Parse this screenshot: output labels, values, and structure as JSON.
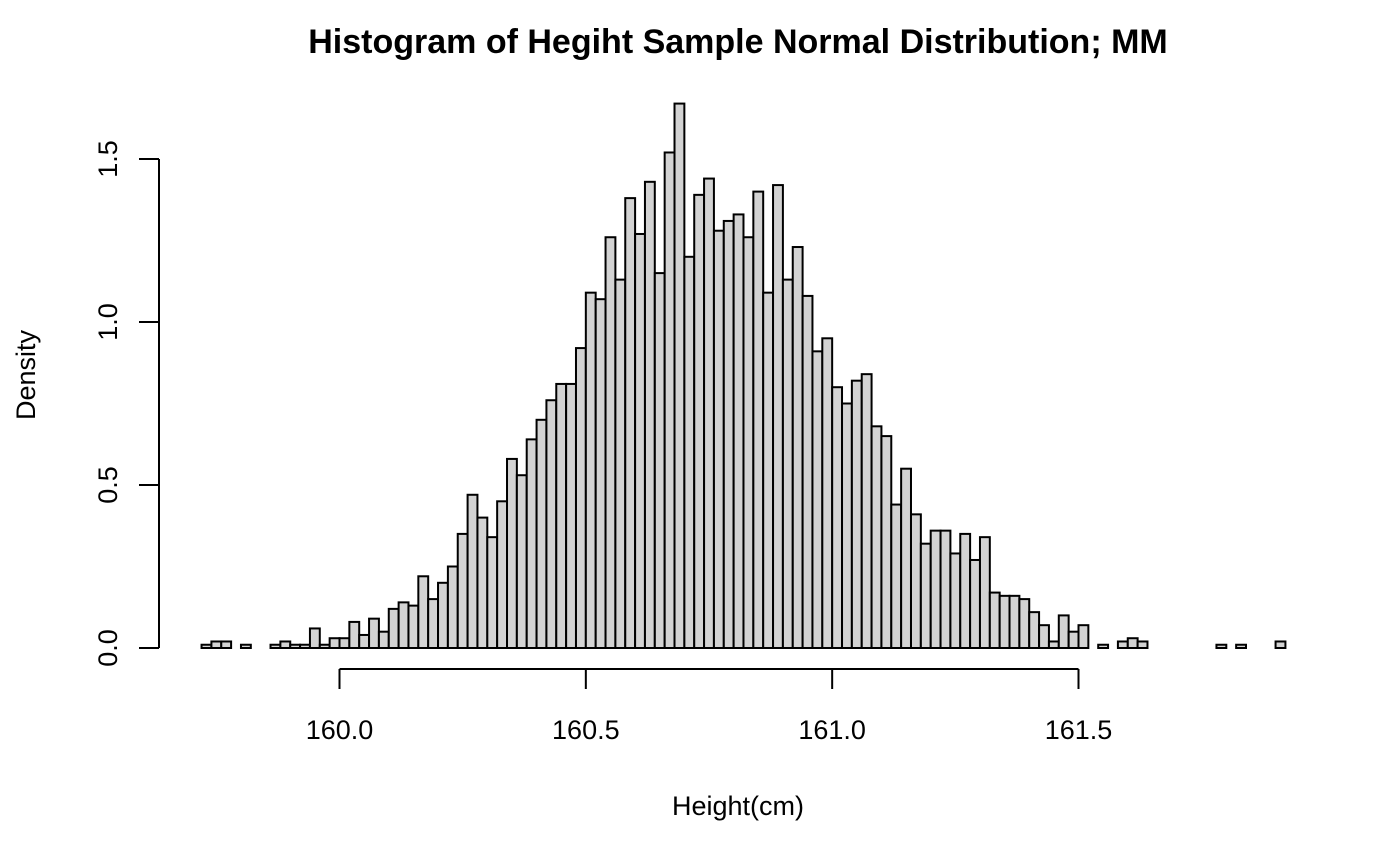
{
  "chart_data": {
    "type": "bar",
    "title": "Histogram of Hegiht Sample Normal Distribution; MM",
    "xlabel": "Height(cm)",
    "ylabel": "Density",
    "bar_color": "#d3d3d3",
    "border_color": "#000000",
    "grid": false,
    "x_ticks": [
      "160.0",
      "160.5",
      "161.0",
      "161.5"
    ],
    "x_tick_values": [
      160.0,
      160.5,
      161.0,
      161.5
    ],
    "y_ticks": [
      "0.0",
      "0.5",
      "1.0",
      "1.5"
    ],
    "y_tick_values": [
      0.0,
      0.5,
      1.0,
      1.5
    ],
    "xlim": [
      159.72,
      161.9
    ],
    "ylim": [
      0,
      1.68
    ],
    "bin_width": 0.02,
    "bin_start": 159.72,
    "values": [
      0.01,
      0.02,
      0.02,
      0,
      0.01,
      0,
      0,
      0.01,
      0.02,
      0.01,
      0.01,
      0.06,
      0.01,
      0.03,
      0.03,
      0.08,
      0.04,
      0.09,
      0.05,
      0.12,
      0.14,
      0.13,
      0.22,
      0.15,
      0.2,
      0.25,
      0.35,
      0.47,
      0.4,
      0.34,
      0.45,
      0.58,
      0.53,
      0.64,
      0.7,
      0.76,
      0.81,
      0.81,
      0.92,
      1.09,
      1.07,
      1.26,
      1.13,
      1.38,
      1.27,
      1.43,
      1.15,
      1.52,
      1.67,
      1.2,
      1.39,
      1.44,
      1.28,
      1.31,
      1.33,
      1.26,
      1.4,
      1.09,
      1.42,
      1.13,
      1.23,
      1.08,
      0.91,
      0.95,
      0.8,
      0.75,
      0.82,
      0.84,
      0.68,
      0.65,
      0.44,
      0.55,
      0.41,
      0.32,
      0.36,
      0.36,
      0.29,
      0.35,
      0.27,
      0.34,
      0.17,
      0.16,
      0.16,
      0.15,
      0.11,
      0.07,
      0.02,
      0.1,
      0.05,
      0.07,
      0,
      0.01,
      0,
      0.02,
      0.03,
      0.02,
      0,
      0,
      0,
      0,
      0,
      0,
      0,
      0.01,
      0,
      0.01,
      0,
      0,
      0,
      0.02
    ]
  }
}
